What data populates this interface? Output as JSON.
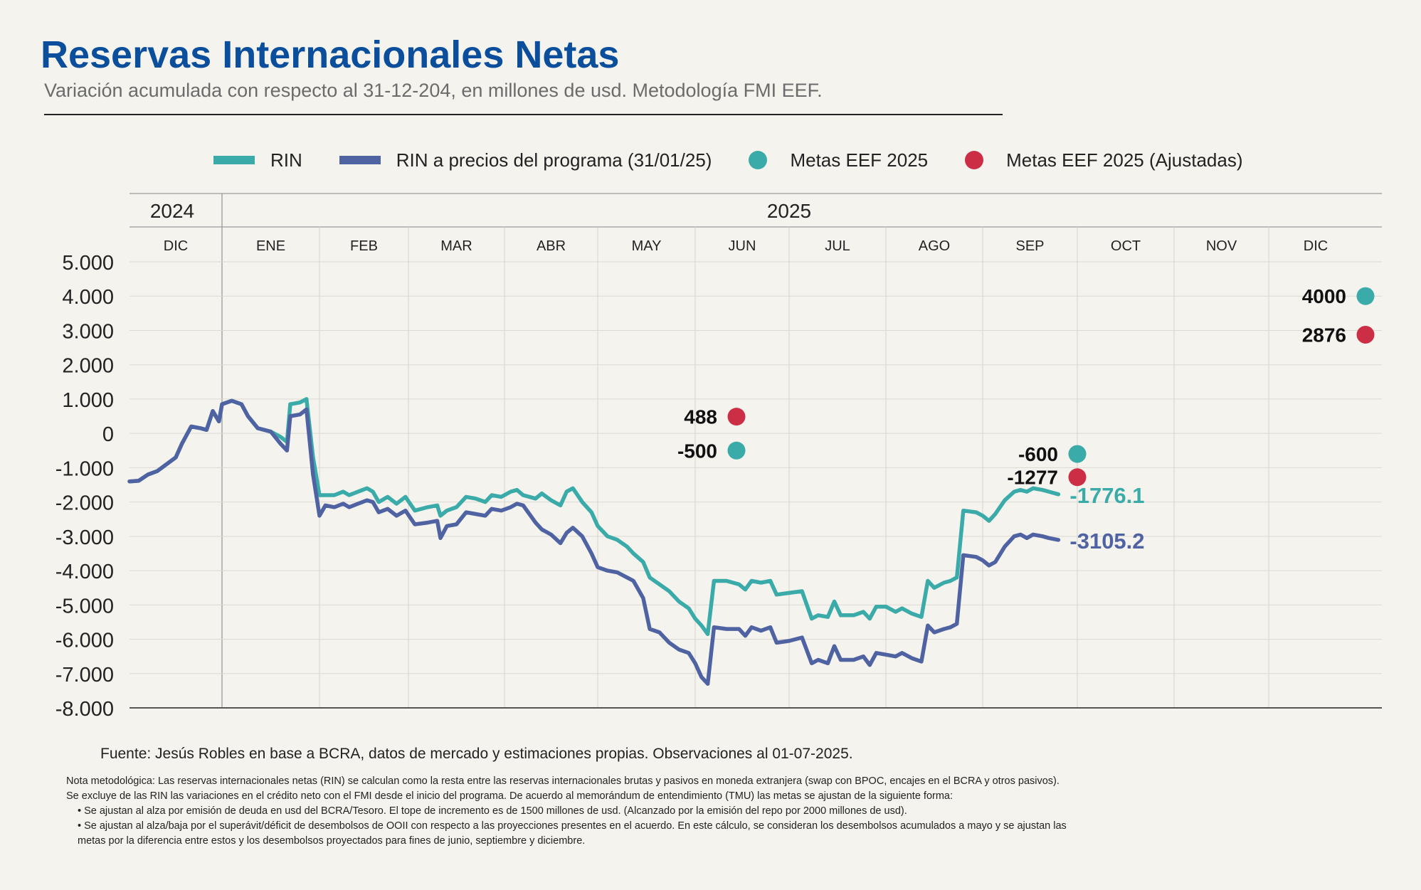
{
  "title": "Reservas Internacionales Netas",
  "subtitle": "Variación acumulada con respecto al 31-12-204, en millones de usd. Metodología FMI EEF.",
  "legend": {
    "rin": "RIN",
    "rin_prog": "RIN a precios del programa (31/01/25)",
    "metas": "Metas EEF 2025",
    "metas_aj": "Metas EEF 2025 (Ajustadas)"
  },
  "colors": {
    "rin": "#3aaba8",
    "rin_prog": "#4f62a2",
    "metas": "#3aaba8",
    "metas_aj": "#cc2f45",
    "title": "#0b4f9c"
  },
  "source": "Fuente: Jesús Robles en base a BCRA, datos de mercado y estimaciones propias. Observaciones al 01-07-2025.",
  "notes": {
    "line1": "Nota metodológica: Las reservas internacionales netas (RIN) se calculan como la resta entre las reservas internacionales brutas y pasivos en moneda extranjera (swap con BPOC, encajes en el BCRA y otros pasivos).",
    "line2": "Se excluye de las RIN las variaciones en el crédito neto con el FMI desde el inicio del programa. De acuerdo al memorándum de entendimiento (TMU) las metas se ajustan de la siguiente forma:",
    "bullet1": "• Se ajustan al alza por emisión de deuda en usd del BCRA/Tesoro. El tope de incremento es de 1500 millones de usd. (Alcanzado por la emisión del repo por 2000 millones de usd).",
    "bullet2a": "• Se ajustan al alza/baja por el superávit/déficit de desembolsos de OOII con respecto a las proyecciones presentes en el acuerdo. En este cálculo, se consideran los desembolsos acumulados a mayo y se ajustan las",
    "bullet2b": "metas por la diferencia entre estos y los desembolsos proyectados para fines de junio, septiembre y diciembre."
  },
  "chart_data": {
    "type": "line",
    "years": [
      "2024",
      "2025"
    ],
    "months": [
      "DIC",
      "ENE",
      "FEB",
      "MAR",
      "ABR",
      "MAY",
      "JUN",
      "JUL",
      "AGO",
      "SEP",
      "OCT",
      "NOV",
      "DIC"
    ],
    "ylim": [
      -8000,
      5000
    ],
    "yticks": [
      "5.000",
      "4.000",
      "3.000",
      "2.000",
      "1.000",
      "0",
      "-1.000",
      "-2.000",
      "-3.000",
      "-4.000",
      "-5.000",
      "-6.000",
      "-7.000",
      "-8.000"
    ],
    "grid": true,
    "legend_position": "top",
    "series": [
      {
        "name": "RIN",
        "end_label": "-1776.1",
        "points": [
          [
            0.0,
            -1400
          ],
          [
            0.3,
            -1380
          ],
          [
            0.6,
            -1200
          ],
          [
            0.9,
            -1100
          ],
          [
            1.2,
            -900
          ],
          [
            1.5,
            -700
          ],
          [
            1.7,
            -300
          ],
          [
            2.0,
            200
          ],
          [
            2.3,
            150
          ],
          [
            2.5,
            100
          ],
          [
            2.7,
            650
          ],
          [
            2.9,
            350
          ],
          [
            3.0,
            850
          ],
          [
            3.3,
            950
          ],
          [
            3.6,
            850
          ],
          [
            3.8,
            500
          ],
          [
            4.1,
            150
          ],
          [
            4.5,
            50
          ],
          [
            4.8,
            -100
          ],
          [
            5.0,
            -250
          ],
          [
            5.1,
            850
          ],
          [
            5.4,
            900
          ],
          [
            5.6,
            1000
          ],
          [
            5.8,
            -700
          ],
          [
            6.0,
            -1800
          ],
          [
            6.5,
            -1800
          ],
          [
            6.8,
            -1700
          ],
          [
            7.0,
            -1800
          ],
          [
            7.3,
            -1700
          ],
          [
            7.6,
            -1600
          ],
          [
            7.8,
            -1700
          ],
          [
            8.0,
            -2000
          ],
          [
            8.3,
            -1850
          ],
          [
            8.6,
            -2050
          ],
          [
            8.9,
            -1850
          ],
          [
            9.2,
            -2250
          ],
          [
            9.6,
            -2150
          ],
          [
            9.9,
            -2100
          ],
          [
            10.0,
            -2400
          ],
          [
            10.2,
            -2250
          ],
          [
            10.5,
            -2150
          ],
          [
            10.8,
            -1850
          ],
          [
            11.1,
            -1900
          ],
          [
            11.4,
            -2000
          ],
          [
            11.6,
            -1800
          ],
          [
            11.9,
            -1850
          ],
          [
            12.2,
            -1700
          ],
          [
            12.4,
            -1650
          ],
          [
            12.6,
            -1800
          ],
          [
            13.0,
            -1900
          ],
          [
            13.2,
            -1750
          ],
          [
            13.5,
            -1950
          ],
          [
            13.8,
            -2100
          ],
          [
            14.0,
            -1700
          ],
          [
            14.2,
            -1600
          ],
          [
            14.5,
            -2000
          ],
          [
            14.8,
            -2300
          ],
          [
            15.0,
            -2700
          ],
          [
            15.3,
            -3000
          ],
          [
            15.6,
            -3100
          ],
          [
            15.9,
            -3300
          ],
          [
            16.1,
            -3500
          ],
          [
            16.4,
            -3750
          ],
          [
            16.6,
            -4200
          ],
          [
            16.9,
            -4400
          ],
          [
            17.2,
            -4600
          ],
          [
            17.5,
            -4900
          ],
          [
            17.8,
            -5100
          ],
          [
            18.0,
            -5400
          ],
          [
            18.2,
            -5600
          ],
          [
            18.4,
            -5850
          ],
          [
            18.6,
            -4300
          ],
          [
            19.0,
            -4300
          ],
          [
            19.4,
            -4400
          ],
          [
            19.6,
            -4550
          ],
          [
            19.8,
            -4300
          ],
          [
            20.1,
            -4350
          ],
          [
            20.4,
            -4300
          ],
          [
            20.6,
            -4700
          ],
          [
            21.0,
            -4650
          ],
          [
            21.4,
            -4600
          ],
          [
            21.7,
            -5400
          ],
          [
            21.9,
            -5300
          ],
          [
            22.2,
            -5350
          ],
          [
            22.4,
            -4900
          ],
          [
            22.6,
            -5300
          ],
          [
            23.0,
            -5300
          ],
          [
            23.3,
            -5200
          ],
          [
            23.5,
            -5400
          ],
          [
            23.7,
            -5050
          ],
          [
            24.0,
            -5050
          ],
          [
            24.3,
            -5200
          ],
          [
            24.5,
            -5100
          ],
          [
            24.8,
            -5250
          ],
          [
            25.1,
            -5350
          ],
          [
            25.3,
            -4300
          ],
          [
            25.5,
            -4500
          ],
          [
            25.8,
            -4350
          ],
          [
            26.0,
            -4300
          ],
          [
            26.2,
            -4200
          ],
          [
            26.4,
            -2250
          ],
          [
            26.8,
            -2300
          ],
          [
            27.0,
            -2400
          ],
          [
            27.2,
            -2550
          ],
          [
            27.4,
            -2350
          ],
          [
            27.7,
            -1950
          ],
          [
            28.0,
            -1700
          ],
          [
            28.2,
            -1650
          ],
          [
            28.4,
            -1700
          ],
          [
            28.6,
            -1600
          ],
          [
            28.9,
            -1650
          ],
          [
            29.1,
            -1700
          ],
          [
            29.4,
            -1776.1
          ]
        ]
      },
      {
        "name": "RIN a precios del programa (31/01/25)",
        "end_label": "-3105.2",
        "points": [
          [
            0.0,
            -1400
          ],
          [
            0.3,
            -1380
          ],
          [
            0.6,
            -1200
          ],
          [
            0.9,
            -1100
          ],
          [
            1.2,
            -900
          ],
          [
            1.5,
            -700
          ],
          [
            1.7,
            -300
          ],
          [
            2.0,
            200
          ],
          [
            2.3,
            150
          ],
          [
            2.5,
            100
          ],
          [
            2.7,
            650
          ],
          [
            2.9,
            350
          ],
          [
            3.0,
            850
          ],
          [
            3.3,
            950
          ],
          [
            3.6,
            850
          ],
          [
            3.8,
            500
          ],
          [
            4.1,
            150
          ],
          [
            4.5,
            50
          ],
          [
            4.8,
            -300
          ],
          [
            5.0,
            -500
          ],
          [
            5.1,
            500
          ],
          [
            5.4,
            550
          ],
          [
            5.6,
            700
          ],
          [
            5.8,
            -1200
          ],
          [
            6.0,
            -2400
          ],
          [
            6.2,
            -2100
          ],
          [
            6.5,
            -2150
          ],
          [
            6.8,
            -2050
          ],
          [
            7.0,
            -2150
          ],
          [
            7.3,
            -2050
          ],
          [
            7.6,
            -1950
          ],
          [
            7.8,
            -2000
          ],
          [
            8.0,
            -2300
          ],
          [
            8.3,
            -2200
          ],
          [
            8.6,
            -2400
          ],
          [
            8.9,
            -2250
          ],
          [
            9.2,
            -2650
          ],
          [
            9.6,
            -2600
          ],
          [
            9.9,
            -2550
          ],
          [
            10.0,
            -3050
          ],
          [
            10.2,
            -2700
          ],
          [
            10.5,
            -2650
          ],
          [
            10.8,
            -2300
          ],
          [
            11.1,
            -2350
          ],
          [
            11.4,
            -2400
          ],
          [
            11.6,
            -2200
          ],
          [
            11.9,
            -2250
          ],
          [
            12.2,
            -2150
          ],
          [
            12.4,
            -2050
          ],
          [
            12.6,
            -2100
          ],
          [
            13.0,
            -2600
          ],
          [
            13.2,
            -2800
          ],
          [
            13.5,
            -2950
          ],
          [
            13.8,
            -3200
          ],
          [
            14.0,
            -2900
          ],
          [
            14.2,
            -2750
          ],
          [
            14.5,
            -3000
          ],
          [
            14.8,
            -3500
          ],
          [
            15.0,
            -3900
          ],
          [
            15.3,
            -4000
          ],
          [
            15.6,
            -4050
          ],
          [
            15.9,
            -4200
          ],
          [
            16.1,
            -4300
          ],
          [
            16.4,
            -4800
          ],
          [
            16.6,
            -5700
          ],
          [
            16.9,
            -5800
          ],
          [
            17.2,
            -6100
          ],
          [
            17.5,
            -6300
          ],
          [
            17.8,
            -6400
          ],
          [
            18.0,
            -6700
          ],
          [
            18.2,
            -7100
          ],
          [
            18.4,
            -7300
          ],
          [
            18.6,
            -5650
          ],
          [
            19.0,
            -5700
          ],
          [
            19.4,
            -5700
          ],
          [
            19.6,
            -5900
          ],
          [
            19.8,
            -5650
          ],
          [
            20.1,
            -5750
          ],
          [
            20.4,
            -5650
          ],
          [
            20.6,
            -6100
          ],
          [
            21.0,
            -6050
          ],
          [
            21.4,
            -5950
          ],
          [
            21.7,
            -6700
          ],
          [
            21.9,
            -6600
          ],
          [
            22.2,
            -6700
          ],
          [
            22.4,
            -6200
          ],
          [
            22.6,
            -6600
          ],
          [
            23.0,
            -6600
          ],
          [
            23.3,
            -6500
          ],
          [
            23.5,
            -6750
          ],
          [
            23.7,
            -6400
          ],
          [
            24.0,
            -6450
          ],
          [
            24.3,
            -6500
          ],
          [
            24.5,
            -6400
          ],
          [
            24.8,
            -6550
          ],
          [
            25.1,
            -6650
          ],
          [
            25.3,
            -5600
          ],
          [
            25.5,
            -5800
          ],
          [
            25.8,
            -5700
          ],
          [
            26.0,
            -5650
          ],
          [
            26.2,
            -5550
          ],
          [
            26.4,
            -3550
          ],
          [
            26.8,
            -3600
          ],
          [
            27.0,
            -3700
          ],
          [
            27.2,
            -3850
          ],
          [
            27.4,
            -3750
          ],
          [
            27.7,
            -3300
          ],
          [
            28.0,
            -3000
          ],
          [
            28.2,
            -2950
          ],
          [
            28.4,
            -3050
          ],
          [
            28.6,
            -2950
          ],
          [
            28.9,
            -3000
          ],
          [
            29.1,
            -3050
          ],
          [
            29.4,
            -3105.2
          ]
        ]
      }
    ],
    "metas": [
      {
        "month": "JUN",
        "value": -500,
        "label": "-500"
      },
      {
        "month": "SEP",
        "value": -600,
        "label": "-600"
      },
      {
        "month": "DIC",
        "value": 4000,
        "label": "4000"
      }
    ],
    "metas_ajustadas": [
      {
        "month": "JUN",
        "value": 488,
        "label": "488"
      },
      {
        "month": "SEP",
        "value": -1277,
        "label": "-1277"
      },
      {
        "month": "DIC",
        "value": 2876,
        "label": "2876"
      }
    ]
  }
}
